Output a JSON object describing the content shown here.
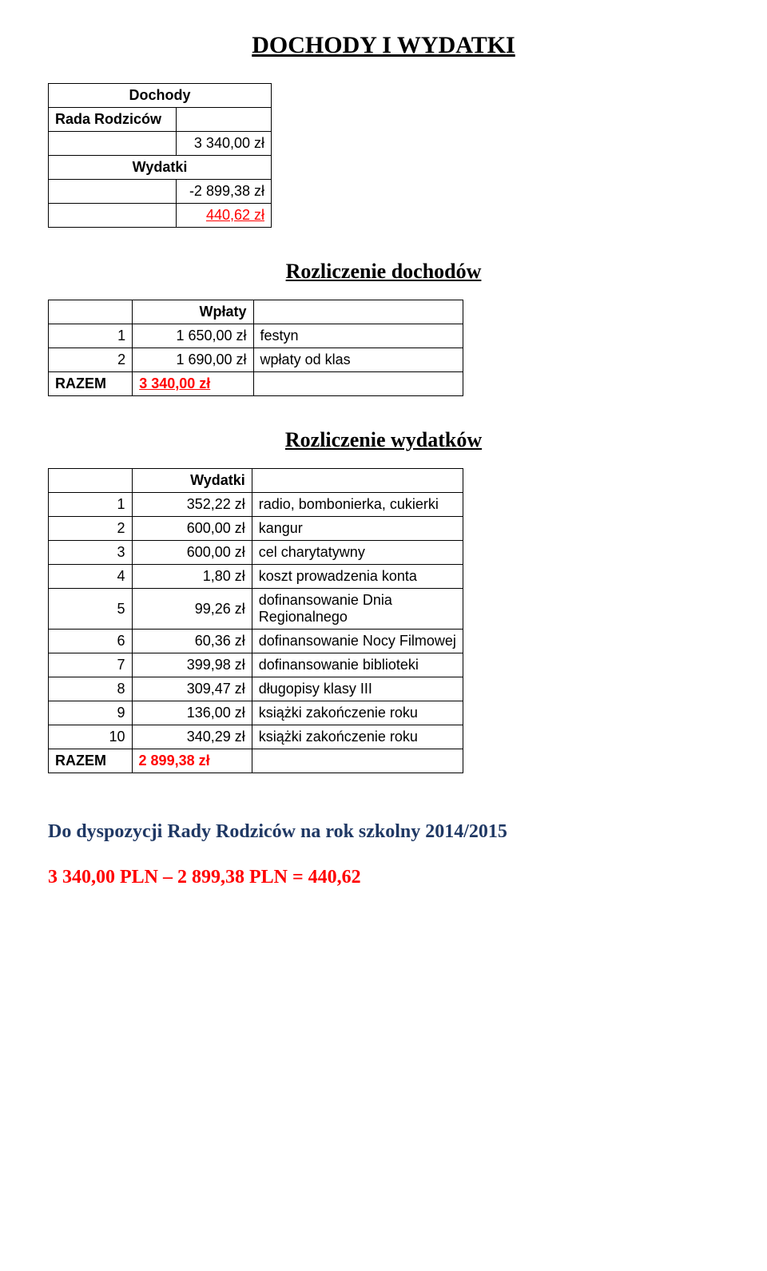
{
  "title": "DOCHODY I WYDATKI",
  "summary": {
    "dochody_label": "Dochody",
    "rada_label": "Rada Rodziców",
    "rada_value": "3 340,00 zł",
    "wydatki_label": "Wydatki",
    "wydatki_value": "-2 899,38 zł",
    "balance_value": "440,62 zł"
  },
  "income": {
    "heading": "Rozliczenie dochodów",
    "header": "Wpłaty",
    "rows": [
      {
        "n": "1",
        "amt": "1 650,00 zł",
        "desc": "festyn"
      },
      {
        "n": "2",
        "amt": "1 690,00 zł",
        "desc": "wpłaty od klas"
      }
    ],
    "razem_label": "RAZEM",
    "razem_value": "3 340,00 zł"
  },
  "expenses": {
    "heading": "Rozliczenie wydatków",
    "header": "Wydatki",
    "rows": [
      {
        "n": "1",
        "amt": "352,22 zł",
        "desc": "radio, bombonierka, cukierki"
      },
      {
        "n": "2",
        "amt": "600,00 zł",
        "desc": "kangur"
      },
      {
        "n": "3",
        "amt": "600,00 zł",
        "desc": "cel charytatywny"
      },
      {
        "n": "4",
        "amt": "1,80 zł",
        "desc": "koszt prowadzenia konta"
      },
      {
        "n": "5",
        "amt": "99,26 zł",
        "desc": "dofinansowanie Dnia Regionalnego"
      },
      {
        "n": "6",
        "amt": "60,36 zł",
        "desc": "dofinansowanie Nocy Filmowej"
      },
      {
        "n": "7",
        "amt": "399,98 zł",
        "desc": "dofinansowanie biblioteki"
      },
      {
        "n": "8",
        "amt": "309,47 zł",
        "desc": "długopisy klasy III"
      },
      {
        "n": "9",
        "amt": "136,00 zł",
        "desc": "książki zakończenie roku"
      },
      {
        "n": "10",
        "amt": "340,29 zł",
        "desc": "książki zakończenie roku"
      }
    ],
    "razem_label": "RAZEM",
    "razem_value": "2 899,38 zł"
  },
  "footer": {
    "line1": "Do dyspozycji Rady Rodziców na rok szkolny 2014/2015",
    "line2": "3 340,00 PLN – 2 899,38 PLN = 440,62"
  },
  "colors": {
    "red": "#ff0000",
    "navy": "#1f3864",
    "text": "#000000",
    "bg": "#ffffff"
  }
}
